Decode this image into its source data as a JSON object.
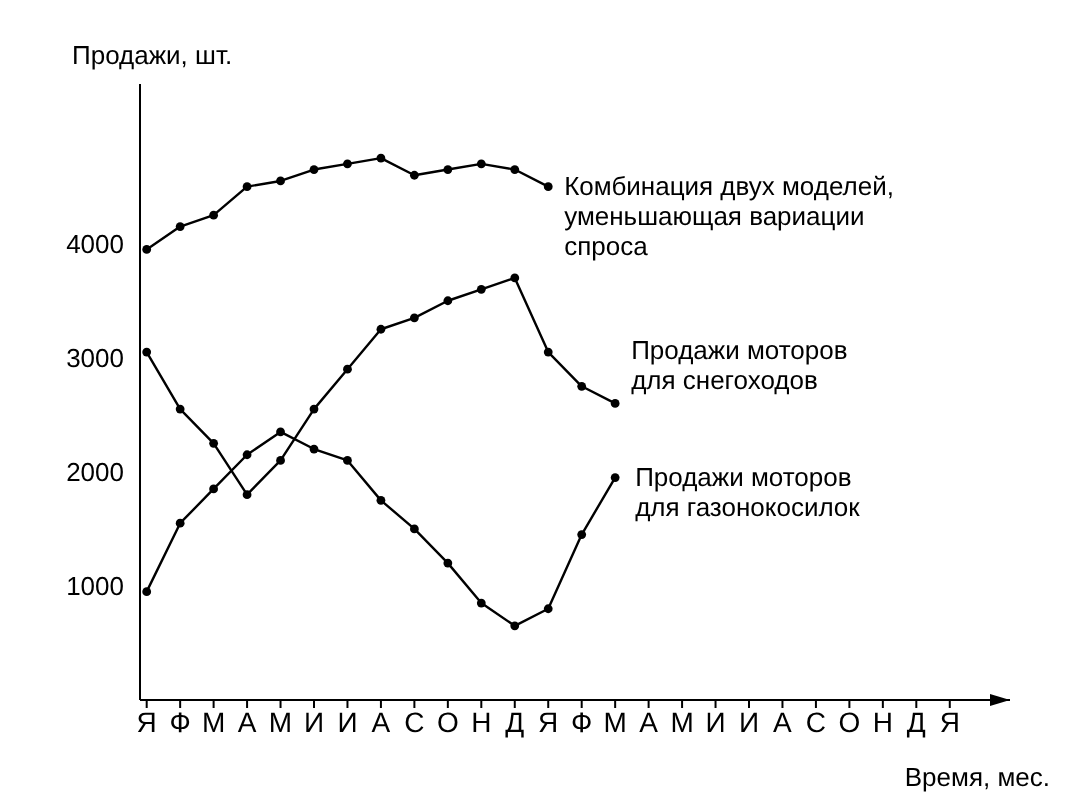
{
  "chart_data": {
    "type": "line",
    "ylabel": "Продажи, шт.",
    "xlabel": "Время, мес.",
    "categories": [
      "Я",
      "Ф",
      "М",
      "А",
      "М",
      "И",
      "И",
      "А",
      "С",
      "О",
      "Н",
      "Д",
      "Я",
      "Ф",
      "М",
      "А",
      "М",
      "И",
      "И",
      "А",
      "С",
      "О",
      "Н",
      "Д",
      "Я"
    ],
    "series": [
      {
        "name": "Комбинация двух моделей, уменьшающая вариации спроса",
        "color": "#000000",
        "values": [
          3950,
          4150,
          4250,
          4500,
          4550,
          4650,
          4700,
          4750,
          4600,
          4650,
          4700,
          4650,
          4500,
          null,
          null,
          null,
          null,
          null,
          null,
          null,
          null,
          null,
          null,
          null,
          null
        ]
      },
      {
        "name": "Продажи моторов для снегоходов",
        "color": "#000000",
        "values": [
          3050,
          2550,
          2250,
          1800,
          2100,
          2550,
          2900,
          3250,
          3350,
          3500,
          3600,
          3700,
          3050,
          2750,
          2600,
          null,
          null,
          null,
          null,
          null,
          null,
          null,
          null,
          null,
          null
        ]
      },
      {
        "name": "Продажи моторов для газонокосилок",
        "color": "#000000",
        "values": [
          950,
          1550,
          1850,
          2150,
          2350,
          2200,
          2100,
          1750,
          1500,
          1200,
          850,
          650,
          800,
          1450,
          1950,
          null,
          null,
          null,
          null,
          null,
          null,
          null,
          null,
          null,
          null
        ]
      }
    ],
    "ylim": [
      0,
      5400
    ],
    "yticks": [
      1000,
      2000,
      3000,
      4000
    ],
    "grid": false,
    "legend": false,
    "marker": "circle",
    "line_style": "solid"
  }
}
